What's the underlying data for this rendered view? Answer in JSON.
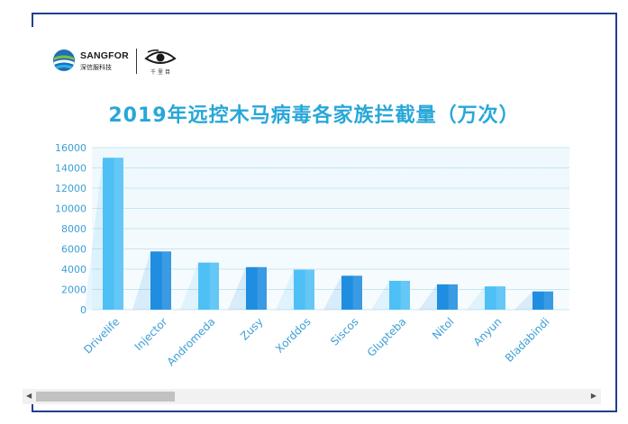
{
  "logo": {
    "brand": "SANGFOR",
    "sub": "深信服科技",
    "eye_text": "千里目"
  },
  "colors": {
    "title": "#27a7d9",
    "bar_light": "#4fc0f5",
    "bar_dark": "#1f8de0",
    "grid": "#c8e6f2",
    "tick": "#3c9fd6",
    "frame": "#1f3f8f"
  },
  "chart_data": {
    "type": "bar",
    "title": "2019年远控木马病毒各家族拦截量（万次）",
    "categories": [
      "Drivelife",
      "Injector",
      "Andromeda",
      "Zusy",
      "Xorddos",
      "Siscos",
      "Glupteba",
      "Nitol",
      "Anyun",
      "Bladabindi"
    ],
    "values": [
      15000,
      5750,
      4650,
      4200,
      3950,
      3350,
      2850,
      2500,
      2300,
      1800
    ],
    "yticks": [
      0,
      2000,
      4000,
      6000,
      8000,
      10000,
      12000,
      14000,
      16000
    ],
    "ylim": [
      0,
      16000
    ],
    "grid": true,
    "legend": "none"
  },
  "scrollbar": {
    "left_arrow": "◀",
    "right_arrow": "▶"
  }
}
